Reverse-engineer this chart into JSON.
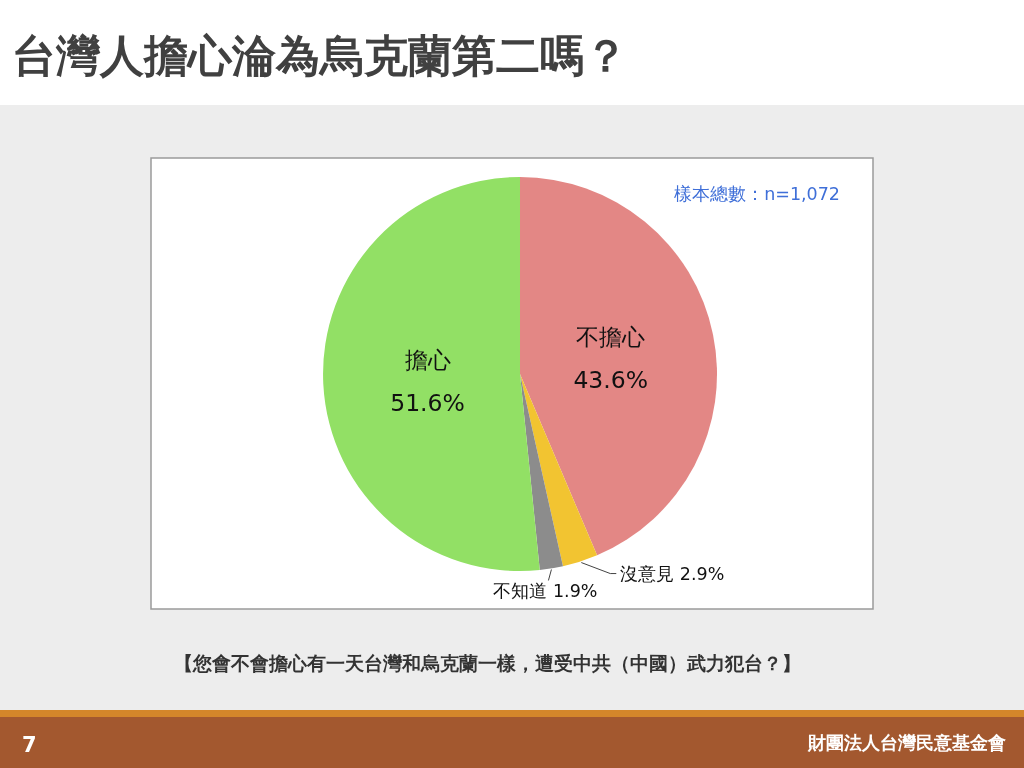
{
  "chart_data": {
    "type": "pie",
    "title": "台灣人擔心淪為烏克蘭第二嗎？",
    "categories": [
      "不擔心",
      "沒意見",
      "不知道",
      "擔心"
    ],
    "values": [
      43.6,
      2.9,
      1.9,
      51.6
    ],
    "colors": [
      "#e38785",
      "#f2c431",
      "#8c8c8c",
      "#92e065"
    ],
    "value_labels": [
      "43.6%",
      "2.9%",
      "1.9%",
      "51.6%"
    ],
    "annotations": [
      "樣本總數：n=1,072",
      "【您會不會擔心有一天台灣和烏克蘭一樣，遭受中共（中國）武力犯台？】",
      "7",
      "財團法人台灣民意基金會"
    ]
  }
}
